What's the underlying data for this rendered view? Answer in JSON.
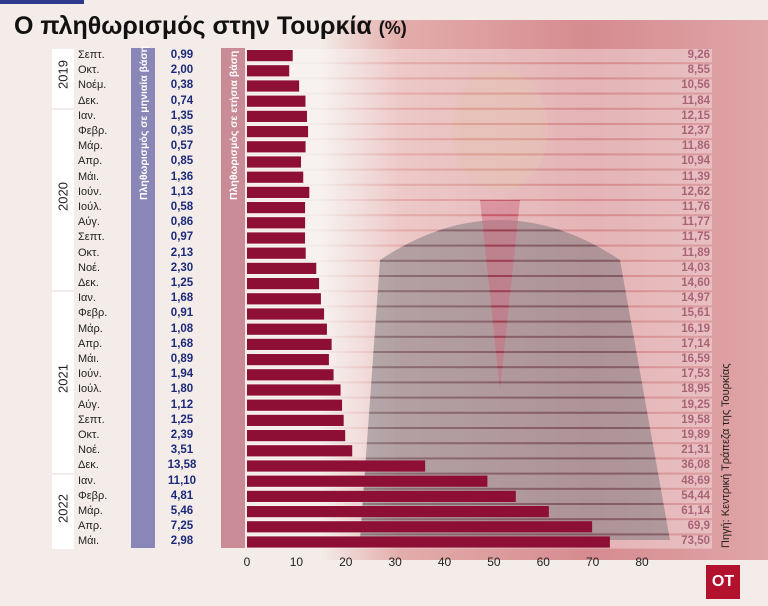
{
  "title": "Ο πληθωρισμός στην Τουρκία",
  "title_unit": "(%)",
  "monthly_label": "Πληθωρισμός σε μηνιαία βάση",
  "annual_label": "Πληθωρισμός σε ετήσια βάση",
  "source": "Πηγή: Κεντρική Τράπεζα της Τουρκίας",
  "logo": "OT",
  "colors": {
    "bar": "#8e0f35",
    "monthly_text": "#1d2a7a",
    "annual_text": "#7a0f2b"
  },
  "years": [
    {
      "label": "2019",
      "start": 0,
      "count": 4
    },
    {
      "label": "2020",
      "start": 4,
      "count": 12
    },
    {
      "label": "2021",
      "start": 16,
      "count": 12
    },
    {
      "label": "2022",
      "start": 28,
      "count": 5
    }
  ],
  "chart_data": {
    "type": "bar",
    "orientation": "horizontal",
    "categories": [
      "Σεπτ.",
      "Οκτ.",
      "Νοέμ.",
      "Δεκ.",
      "Ιαν.",
      "Φεβρ.",
      "Μάρ.",
      "Απρ.",
      "Μάι.",
      "Ιούν.",
      "Ιούλ.",
      "Αύγ.",
      "Σεπτ.",
      "Οκτ.",
      "Νοέ.",
      "Δεκ.",
      "Ιαν.",
      "Φεβρ.",
      "Μάρ.",
      "Απρ.",
      "Μάι.",
      "Ιούν.",
      "Ιούλ.",
      "Αύγ.",
      "Σεπτ.",
      "Οκτ.",
      "Νοέ.",
      "Δεκ.",
      "Ιαν.",
      "Φεβρ.",
      "Μάρ.",
      "Απρ.",
      "Μάι."
    ],
    "monthly_labels": [
      "0,99",
      "2,00",
      "0,38",
      "0,74",
      "1,35",
      "0,35",
      "0,57",
      "0,85",
      "1,36",
      "1,13",
      "0,58",
      "0,86",
      "0,97",
      "2,13",
      "2,30",
      "1,25",
      "1,68",
      "0,91",
      "1,08",
      "1,68",
      "0,89",
      "1,94",
      "1,80",
      "1,12",
      "1,25",
      "2,39",
      "3,51",
      "13,58",
      "11,10",
      "4,81",
      "5,46",
      "7,25",
      "2,98"
    ],
    "annual_labels": [
      "9,26",
      "8,55",
      "10,56",
      "11,84",
      "12,15",
      "12,37",
      "11,86",
      "10,94",
      "11,39",
      "12,62",
      "11,76",
      "11,77",
      "11,75",
      "11,89",
      "14,03",
      "14,60",
      "14,97",
      "15,61",
      "16,19",
      "17,14",
      "16,59",
      "17,53",
      "18,95",
      "19,25",
      "19,58",
      "19,89",
      "21,31",
      "36,08",
      "48,69",
      "54,44",
      "61,14",
      "69,9",
      "73,50"
    ],
    "values": [
      9.26,
      8.55,
      10.56,
      11.84,
      12.15,
      12.37,
      11.86,
      10.94,
      11.39,
      12.62,
      11.76,
      11.77,
      11.75,
      11.89,
      14.03,
      14.6,
      14.97,
      15.61,
      16.19,
      17.14,
      16.59,
      17.53,
      18.95,
      19.25,
      19.58,
      19.89,
      21.31,
      36.08,
      48.69,
      54.44,
      61.14,
      69.9,
      73.5
    ],
    "xlim": [
      0,
      80
    ],
    "ticks": [
      "0",
      "10",
      "20",
      "30",
      "40",
      "50",
      "60",
      "70",
      "80"
    ],
    "grid": false
  }
}
